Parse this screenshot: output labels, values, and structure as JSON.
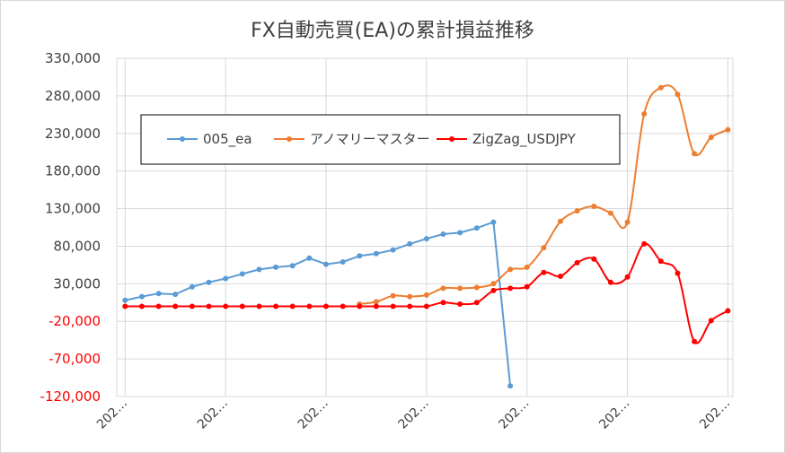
{
  "chart_data": {
    "type": "line",
    "title": "FX自動売買(EA)の累計損益推移",
    "ylim": [
      -120000,
      330000
    ],
    "y_ticks": [
      "330,000",
      "280,000",
      "230,000",
      "180,000",
      "130,000",
      "80,000",
      "30,000",
      "-20,000",
      "-70,000",
      "-120,000"
    ],
    "x_tick_labels": [
      "202…",
      "202…",
      "202…",
      "202…",
      "202…",
      "202…",
      "202…"
    ],
    "grid": true,
    "legend_position": "top-left",
    "series": [
      {
        "name": "005_ea",
        "color": "#5b9bd5",
        "smooth": false,
        "points": [
          [
            0,
            8000
          ],
          [
            1,
            13000
          ],
          [
            2,
            17000
          ],
          [
            3,
            16000
          ],
          [
            4,
            26000
          ],
          [
            5,
            32000
          ],
          [
            6,
            37000
          ],
          [
            7,
            43000
          ],
          [
            8,
            49000
          ],
          [
            9,
            52000
          ],
          [
            10,
            54000
          ],
          [
            11,
            64000
          ],
          [
            12,
            56000
          ],
          [
            13,
            59000
          ],
          [
            14,
            67000
          ],
          [
            15,
            70000
          ],
          [
            16,
            75000
          ],
          [
            17,
            83000
          ],
          [
            18,
            90000
          ],
          [
            19,
            96000
          ],
          [
            20,
            98000
          ],
          [
            21,
            104000
          ],
          [
            22,
            112000
          ],
          [
            23,
            -106000
          ]
        ]
      },
      {
        "name": "アノマリーマスター",
        "color": "#ed7d31",
        "smooth": true,
        "points": [
          [
            14,
            3000
          ],
          [
            15,
            6000
          ],
          [
            16,
            14000
          ],
          [
            17,
            13000
          ],
          [
            18,
            15000
          ],
          [
            19,
            24000
          ],
          [
            20,
            24000
          ],
          [
            21,
            25000
          ],
          [
            22,
            30000
          ],
          [
            23,
            49000
          ],
          [
            24,
            52000
          ],
          [
            25,
            78000
          ],
          [
            26,
            113000
          ],
          [
            27,
            127000
          ],
          [
            28,
            133000
          ],
          [
            29,
            124000
          ],
          [
            30,
            112000
          ],
          [
            31,
            256000
          ],
          [
            32,
            291000
          ],
          [
            33,
            282000
          ],
          [
            34,
            203000
          ],
          [
            35,
            225000
          ],
          [
            36,
            235000
          ]
        ]
      },
      {
        "name": "ZigZag_USDJPY",
        "color": "#ff0000",
        "smooth": true,
        "points": [
          [
            0,
            0
          ],
          [
            1,
            0
          ],
          [
            2,
            0
          ],
          [
            3,
            0
          ],
          [
            4,
            0
          ],
          [
            5,
            0
          ],
          [
            6,
            0
          ],
          [
            7,
            0
          ],
          [
            8,
            0
          ],
          [
            9,
            0
          ],
          [
            10,
            0
          ],
          [
            11,
            0
          ],
          [
            12,
            0
          ],
          [
            13,
            0
          ],
          [
            14,
            0
          ],
          [
            15,
            0
          ],
          [
            16,
            0
          ],
          [
            17,
            0
          ],
          [
            18,
            0
          ],
          [
            19,
            5000
          ],
          [
            20,
            3000
          ],
          [
            21,
            5000
          ],
          [
            22,
            21000
          ],
          [
            23,
            24000
          ],
          [
            24,
            26000
          ],
          [
            25,
            45000
          ],
          [
            26,
            40000
          ],
          [
            27,
            58000
          ],
          [
            28,
            63000
          ],
          [
            29,
            32000
          ],
          [
            30,
            39000
          ],
          [
            31,
            83000
          ],
          [
            32,
            60000
          ],
          [
            33,
            44000
          ],
          [
            34,
            -47000
          ],
          [
            35,
            -19000
          ],
          [
            36,
            -6000
          ]
        ]
      }
    ]
  }
}
